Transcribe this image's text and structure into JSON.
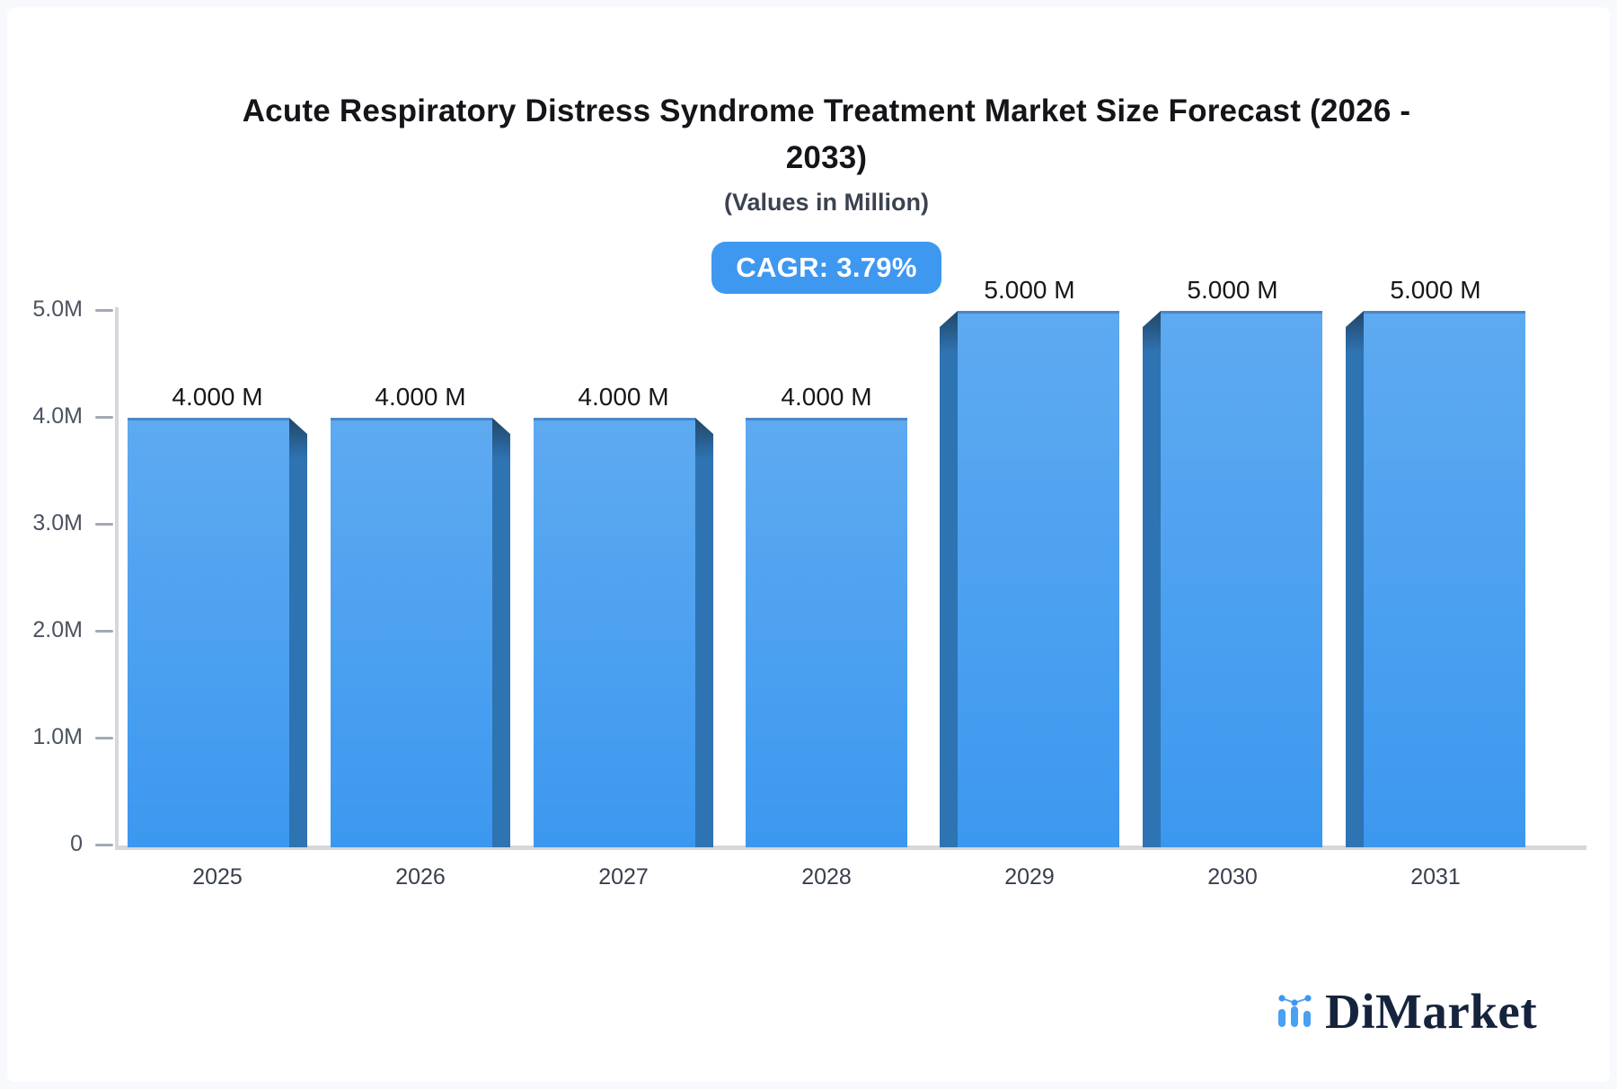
{
  "page": {
    "background_color": "#f7f9fc",
    "card_color": "#ffffff"
  },
  "header": {
    "title_line1": "Acute Respiratory Distress Syndrome Treatment Market Size Forecast (2026 -",
    "title_line2": "2033)",
    "subtitle": "(Values in Million)",
    "cagr_badge": "CAGR: 3.79%",
    "badge_color": "#3e98f0"
  },
  "chart_data": {
    "type": "bar",
    "title": "Acute Respiratory Distress Syndrome Treatment Market Size Forecast (2026 - 2033)",
    "subtitle": "(Values in Million)",
    "cagr_percent": 3.79,
    "unit": "Million",
    "categories": [
      "2025",
      "2026",
      "2027",
      "2028",
      "2029",
      "2030",
      "2031"
    ],
    "values": [
      4.0,
      4.0,
      4.0,
      4.0,
      5.0,
      5.0,
      5.0
    ],
    "value_labels": [
      "4.000 M",
      "4.000 M",
      "4.000 M",
      "4.000 M",
      "5.000 M",
      "5.000 M",
      "5.000 M"
    ],
    "ytick_values": [
      0,
      1,
      2,
      3,
      4,
      5
    ],
    "ytick_labels": [
      "0",
      "1.0M",
      "2.0M",
      "3.0M",
      "4.0M",
      "5.0M"
    ],
    "ylim": [
      0,
      5
    ],
    "xlabel": "",
    "ylabel": "",
    "grid": false,
    "legend": null,
    "bar_face_color_top": "#5eaaf1",
    "bar_face_color_bottom": "#3c98ef",
    "bar_side_color": "#2e73b2",
    "style_3d": "perspective toward center; side face on right for bars left of center, on left for bars right of center"
  },
  "branding": {
    "logo_text": "DiMarket",
    "logo_icon": "mini-bar-chart-with-dots-icon",
    "logo_color": "#16233c",
    "logo_icon_color": "#4aa0f3"
  }
}
